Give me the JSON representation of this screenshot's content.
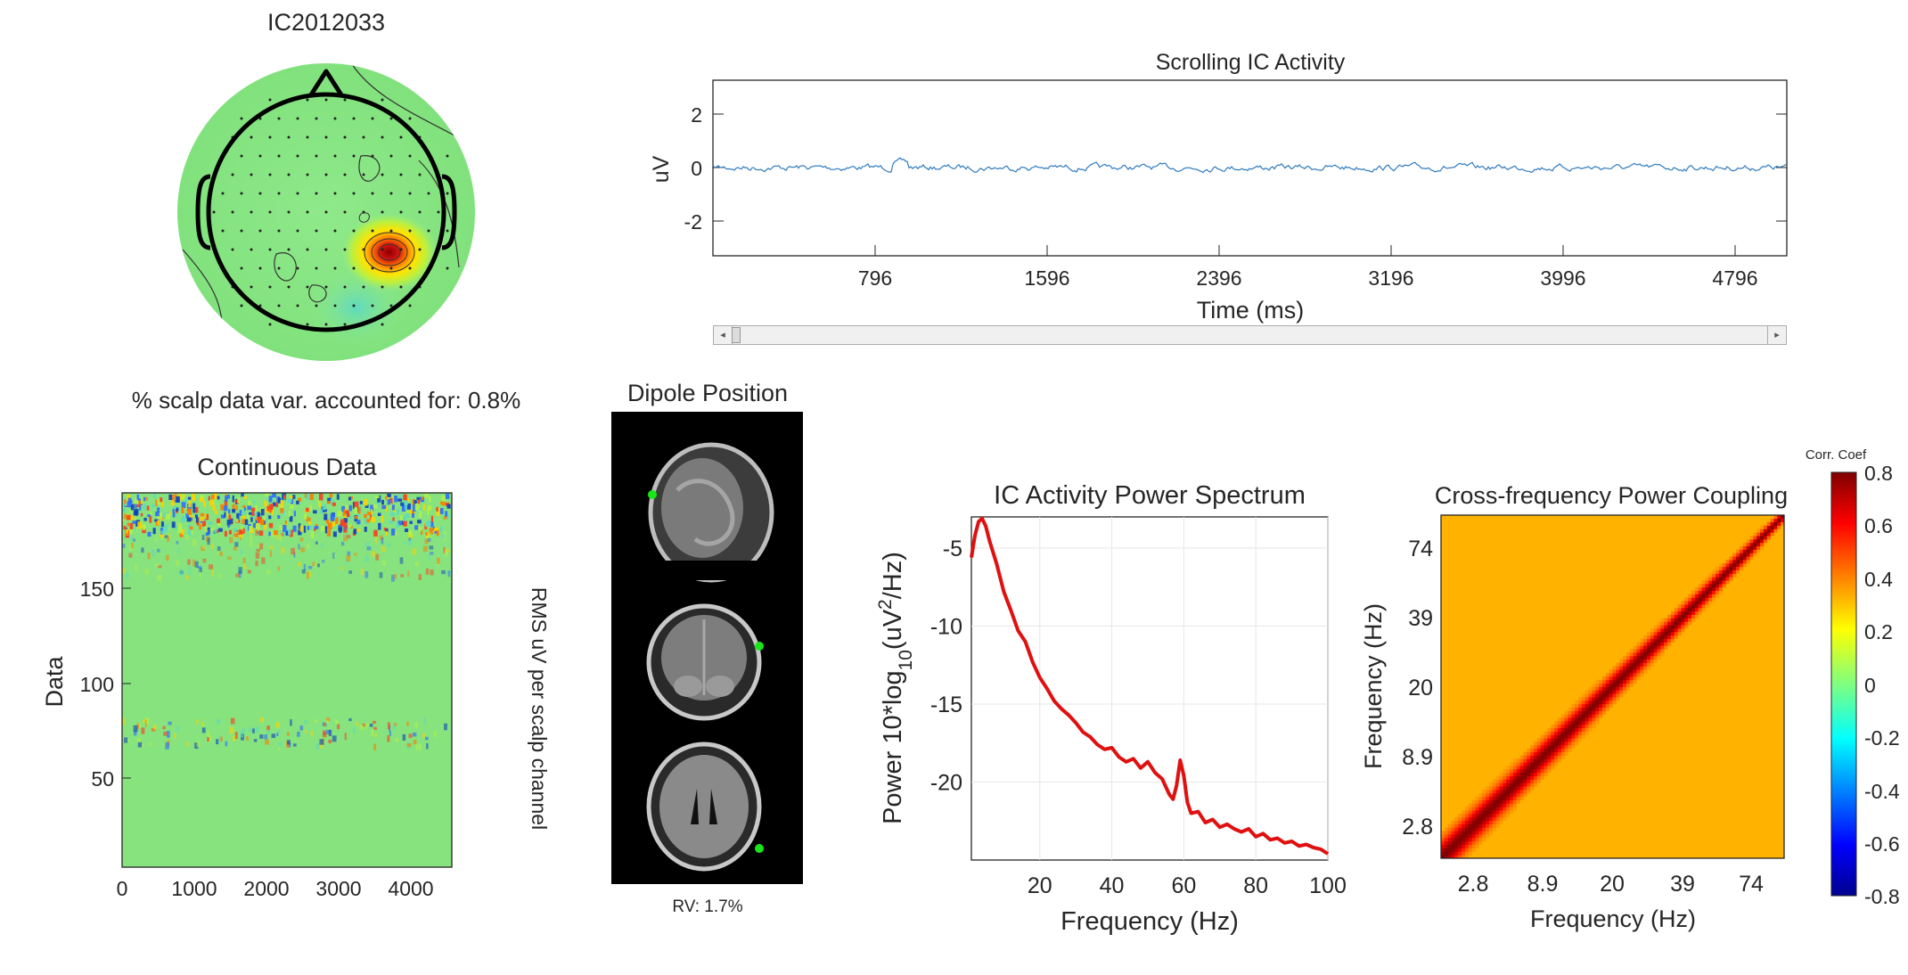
{
  "topo": {
    "title": "IC2012033",
    "variance_text": "% scalp data var. accounted for: 0.8%"
  },
  "scroll": {
    "title": "Scrolling IC Activity",
    "ylabel": "uV",
    "xlabel": "Time (ms)",
    "xticks": [
      "796",
      "1596",
      "2396",
      "3196",
      "3996",
      "4796"
    ],
    "yticks": [
      "2",
      "0",
      "-2"
    ],
    "scrollbar_value": 0.0,
    "line_color": "#2f7bbd"
  },
  "continuous": {
    "title": "Continuous Data",
    "ylabel": "Data",
    "side_label": "RMS uV per scalp channel",
    "xticks": [
      "0",
      "1000",
      "2000",
      "3000",
      "4000"
    ],
    "yticks": [
      "150",
      "100",
      "50"
    ]
  },
  "dipole": {
    "title": "Dipole Position",
    "rv_text": "RV: 1.7%",
    "marker_color": "#19e619"
  },
  "colorbar": {
    "title": "Corr. Coef",
    "ticks": [
      "0.8",
      "0.6",
      "0.4",
      "0.2",
      "0",
      "-0.2",
      "-0.4",
      "-0.6",
      "-0.8"
    ]
  },
  "chart_data": [
    {
      "type": "line",
      "title": "IC Activity Power Spectrum",
      "xlabel": "Frequency (Hz)",
      "ylabel": "Power 10*log10(uV2/Hz)",
      "xticks": [
        "20",
        "40",
        "60",
        "80",
        "100"
      ],
      "yticks": [
        "-5",
        "-10",
        "-15",
        "-20"
      ],
      "xlim": [
        1,
        100
      ],
      "ylim": [
        -25,
        -3
      ],
      "grid": true,
      "color": "#e01010",
      "x": [
        1,
        2,
        3,
        4,
        5,
        6,
        8,
        10,
        12,
        14,
        16,
        18,
        20,
        22,
        24,
        26,
        28,
        30,
        32,
        34,
        36,
        38,
        40,
        42,
        44,
        46,
        48,
        50,
        52,
        54,
        56,
        57,
        58,
        59,
        60,
        61,
        62,
        64,
        66,
        68,
        70,
        72,
        74,
        76,
        78,
        80,
        82,
        84,
        86,
        88,
        90,
        92,
        94,
        96,
        98,
        100
      ],
      "y": [
        -5.6,
        -4.2,
        -3.3,
        -3.1,
        -3.6,
        -4.5,
        -6.0,
        -7.8,
        -9.0,
        -10.3,
        -11.0,
        -12.3,
        -13.3,
        -14.0,
        -14.8,
        -15.3,
        -15.7,
        -16.2,
        -16.8,
        -17.1,
        -17.6,
        -17.9,
        -17.8,
        -18.4,
        -18.7,
        -18.5,
        -19.1,
        -18.7,
        -19.4,
        -19.8,
        -20.8,
        -21.1,
        -20.2,
        -18.6,
        -19.6,
        -21.3,
        -22.0,
        -21.9,
        -22.6,
        -22.4,
        -22.9,
        -22.7,
        -23.0,
        -23.2,
        -23.0,
        -23.5,
        -23.3,
        -23.7,
        -23.6,
        -23.9,
        -23.8,
        -24.1,
        -24.0,
        -24.2,
        -24.3,
        -24.6
      ]
    },
    {
      "type": "heatmap",
      "title": "Cross-frequency Power Coupling",
      "xlabel": "Frequency (Hz)",
      "ylabel": "Frequency (Hz)",
      "ticks": [
        "2.8",
        "8.9",
        "20",
        "39",
        "74"
      ],
      "clim": [
        -0.8,
        0.8
      ],
      "colormap": "jet",
      "cells": 100,
      "background_value": 0.32,
      "diagonal_value": 0.8
    }
  ]
}
